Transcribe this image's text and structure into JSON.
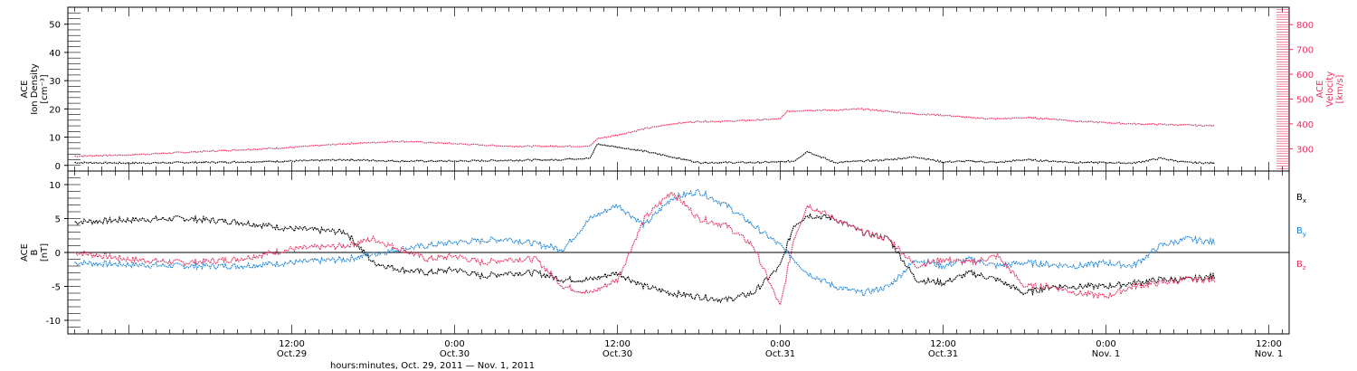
{
  "colors": {
    "black": "#000000",
    "pink": "#e8305f",
    "blue": "#1a82d8"
  },
  "xaxis": {
    "label": "hours:minutes, Oct. 29, 2011 — Nov.  1, 2011",
    "range_hours": [
      -4.5,
      85.5
    ],
    "ticks": [
      {
        "hour": 12,
        "time": "12:00",
        "date": "Oct.29"
      },
      {
        "hour": 24,
        "time": "0:00",
        "date": "Oct.30"
      },
      {
        "hour": 36,
        "time": "12:00",
        "date": "Oct.30"
      },
      {
        "hour": 48,
        "time": "0:00",
        "date": "Oct.31"
      },
      {
        "hour": 60,
        "time": "12:00",
        "date": "Oct.31"
      },
      {
        "hour": 72,
        "time": "0:00",
        "date": "Nov. 1"
      },
      {
        "hour": 84,
        "time": "12:00",
        "date": "Nov. 1"
      }
    ]
  },
  "chart_data": [
    {
      "type": "line",
      "panel": "plasma",
      "ylabel_left": [
        "ACE",
        "Ion Density",
        "[cm⁻³]"
      ],
      "ylabel_right": [
        "ACE",
        "Velocity",
        "[km/s]"
      ],
      "ylim_left": [
        -2,
        56
      ],
      "ylim_right": [
        210,
        870
      ],
      "yticks_left": [
        0,
        10,
        20,
        30,
        40,
        50
      ],
      "yticks_right": [
        300,
        400,
        500,
        600,
        700,
        800
      ],
      "series": [
        {
          "axis": "left",
          "color": "black",
          "x": [
            -4,
            0,
            4,
            8,
            12,
            16,
            20,
            24,
            28,
            32,
            30,
            34,
            34.5,
            36,
            38,
            40,
            42,
            44,
            46,
            48,
            49,
            50,
            52,
            54,
            56,
            58,
            60,
            62,
            64,
            66,
            68,
            70,
            72,
            74,
            76,
            78,
            80
          ],
          "y": [
            1,
            0.8,
            1,
            1.2,
            1.5,
            2,
            1.5,
            1.5,
            1.8,
            2,
            2,
            2.5,
            7.5,
            6.5,
            5,
            3,
            1,
            1,
            1,
            1.2,
            1.5,
            5,
            1,
            1.5,
            2,
            3,
            1.2,
            1.5,
            1,
            2,
            1.5,
            1,
            1,
            0.8,
            2.5,
            1,
            0.8
          ]
        },
        {
          "axis": "right",
          "color": "pink",
          "x": [
            -4,
            0,
            4,
            8,
            12,
            16,
            20,
            24,
            28,
            32,
            34,
            34.5,
            36,
            38,
            40,
            42,
            44,
            46,
            48,
            48.5,
            50,
            52,
            54,
            56,
            58,
            60,
            62,
            64,
            66,
            68,
            70,
            72,
            74,
            76,
            78,
            80
          ],
          "y": [
            270,
            275,
            285,
            295,
            305,
            320,
            330,
            320,
            310,
            310,
            310,
            340,
            355,
            380,
            400,
            410,
            410,
            415,
            420,
            450,
            455,
            455,
            460,
            450,
            440,
            435,
            425,
            420,
            425,
            420,
            410,
            405,
            400,
            398,
            395,
            392
          ]
        }
      ]
    },
    {
      "type": "line",
      "panel": "magnetic",
      "ylabel_left": [
        "ACE",
        "B",
        "[nT]"
      ],
      "ylim": [
        -12,
        12
      ],
      "yticks": [
        -10,
        -5,
        0,
        5,
        10
      ],
      "legend": [
        {
          "label": "Bx",
          "color": "black"
        },
        {
          "label": "By",
          "color": "blue"
        },
        {
          "label": "Bz",
          "color": "pink"
        }
      ],
      "series": [
        {
          "name": "Bx",
          "color": "black",
          "x": [
            -4,
            0,
            4,
            8,
            12,
            16,
            18,
            20,
            22,
            24,
            26,
            28,
            30,
            32,
            34,
            36,
            38,
            40,
            42,
            44,
            46,
            48,
            49,
            50,
            52,
            54,
            56,
            58,
            60,
            62,
            64,
            66,
            68,
            70,
            72,
            74,
            76,
            78,
            80
          ],
          "y": [
            4.5,
            4.8,
            5,
            4.5,
            3.5,
            3,
            -1.5,
            -2.5,
            -3,
            -2.5,
            -3.5,
            -3,
            -3,
            -4,
            -4,
            -3,
            -5,
            -6,
            -6.5,
            -7,
            -6,
            -2,
            4,
            5.5,
            5,
            3,
            2,
            -4,
            -4.5,
            -3,
            -4,
            -6,
            -5,
            -5,
            -5,
            -4.5,
            -4,
            -4,
            -3.5
          ]
        },
        {
          "name": "By",
          "color": "blue",
          "x": [
            -4,
            0,
            4,
            8,
            12,
            16,
            20,
            24,
            28,
            32,
            34,
            36,
            38,
            40,
            42,
            44,
            46,
            48,
            50,
            52,
            54,
            56,
            58,
            60,
            62,
            64,
            66,
            68,
            70,
            72,
            74,
            76,
            78,
            80
          ],
          "y": [
            -1.5,
            -1.8,
            -2,
            -2,
            -1.5,
            -1,
            0.5,
            1.5,
            2,
            0.5,
            5,
            7,
            4,
            8,
            9,
            7,
            4,
            1,
            -3,
            -5,
            -6,
            -5,
            -1,
            -2,
            -1,
            -2,
            -1.5,
            -1.8,
            -2,
            -1.5,
            -2,
            1,
            2,
            1.5
          ]
        },
        {
          "name": "Bz",
          "color": "pink",
          "x": [
            -4,
            0,
            4,
            8,
            12,
            16,
            18,
            20,
            22,
            24,
            26,
            28,
            30,
            32,
            34,
            36,
            38,
            40,
            42,
            44,
            46,
            48,
            49,
            50,
            52,
            54,
            56,
            58,
            60,
            62,
            64,
            66,
            68,
            70,
            72,
            74,
            76,
            78,
            80
          ],
          "y": [
            0,
            -1,
            -1.5,
            -1,
            0.5,
            1,
            2,
            0.5,
            -1,
            -0.5,
            -1.5,
            -1,
            -1,
            -5,
            -6,
            -4,
            5,
            9,
            5,
            4,
            1,
            -8,
            2,
            7,
            5,
            3,
            2,
            -2,
            -1,
            -1.5,
            -0.5,
            -5,
            -5,
            -6,
            -6.5,
            -5,
            -4.5,
            -4,
            -4
          ]
        }
      ]
    }
  ]
}
